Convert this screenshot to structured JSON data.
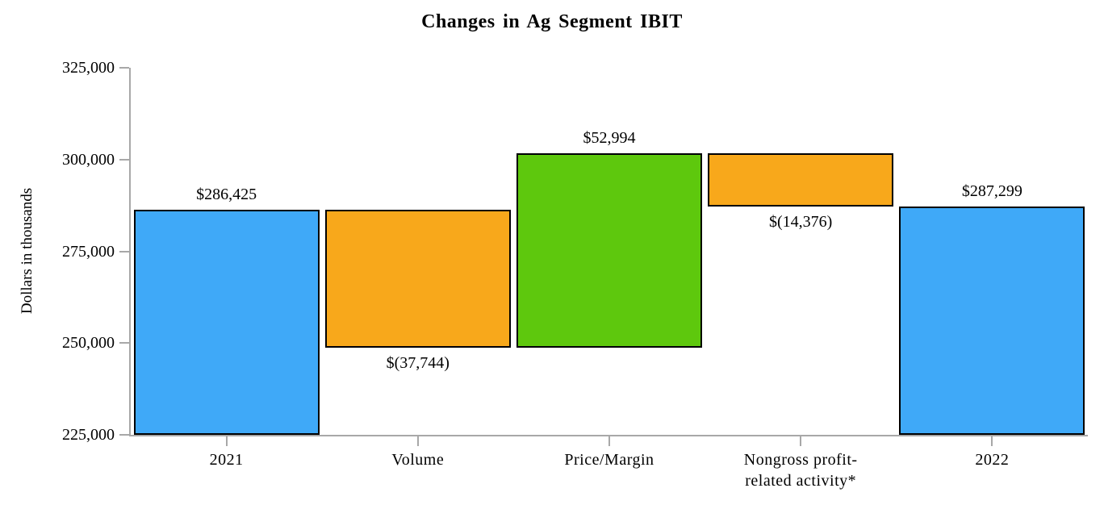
{
  "title": "Changes in Ag Segment IBIT",
  "chart_data": {
    "type": "bar",
    "subtype": "waterfall",
    "title": "Changes in Ag Segment IBIT",
    "ylabel": "Dollars in thousands",
    "ylim": [
      225000,
      325000
    ],
    "grid": false,
    "legend": false,
    "yticks": [
      {
        "value": 225000,
        "label": "225,000"
      },
      {
        "value": 250000,
        "label": "250,000"
      },
      {
        "value": 275000,
        "label": "275,000"
      },
      {
        "value": 300000,
        "label": "300,000"
      },
      {
        "value": 325000,
        "label": "325,000"
      }
    ],
    "categories": [
      "2021",
      "Volume",
      "Price/Margin",
      "Nongross profit-\nrelated activity*",
      "2022"
    ],
    "bars": [
      {
        "category": "2021",
        "value": 286425,
        "value_label": "$286,425",
        "start": 225000,
        "end": 286425,
        "color": "blue",
        "label_position": "above"
      },
      {
        "category": "Volume",
        "value": -37744,
        "value_label": "$(37,744)",
        "start": 286425,
        "end": 248681,
        "color": "orange",
        "label_position": "below"
      },
      {
        "category": "Price/Margin",
        "value": 52994,
        "value_label": "$52,994",
        "start": 248681,
        "end": 301675,
        "color": "green",
        "label_position": "above"
      },
      {
        "category": "Nongross profit-\nrelated activity*",
        "value": -14376,
        "value_label": "$(14,376)",
        "start": 301675,
        "end": 287299,
        "color": "orange",
        "label_position": "below"
      },
      {
        "category": "2022",
        "value": 287299,
        "value_label": "$287,299",
        "start": 225000,
        "end": 287299,
        "color": "blue",
        "label_position": "above"
      }
    ],
    "colors": {
      "blue": "#3fa9f8",
      "orange": "#f8a81b",
      "green": "#5ec80d",
      "axis": "#a8a8a8",
      "bar_border": "#000000",
      "text": "#000000"
    }
  }
}
